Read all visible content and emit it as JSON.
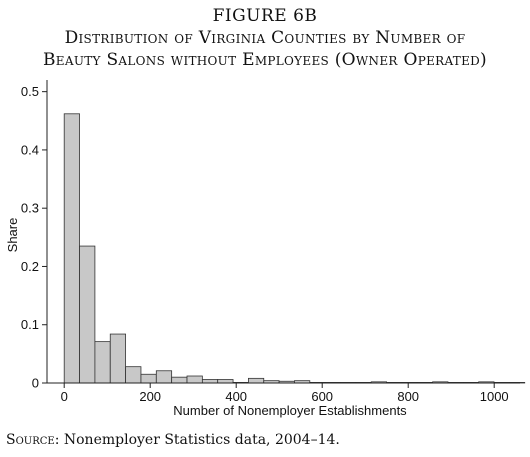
{
  "figure": {
    "label": "FIGURE 6B",
    "title_line1": "Distribution of Virginia Counties by Number of",
    "title_line2": "Beauty Salons without Employees (Owner Operated)"
  },
  "source": {
    "lead": "Source:",
    "text": " Nonemployer Statistics data, 2004–14."
  },
  "chart_data": {
    "type": "bar",
    "xlabel": "Number of Nonemployer Establishments",
    "ylabel": "Share",
    "xlim": [
      -40,
      1060
    ],
    "ylim": [
      0,
      0.52
    ],
    "bin_width": 35.7,
    "bin_start": 0,
    "bar_fill": "#c8c8c8",
    "bar_stroke": "#333333",
    "xticks": [
      0,
      200,
      400,
      600,
      800,
      1000
    ],
    "xtick_labels": [
      "0",
      "200",
      "400",
      "600",
      "800",
      "1000"
    ],
    "yticks": [
      0,
      0.1,
      0.2,
      0.3,
      0.4,
      0.5
    ],
    "ytick_labels": [
      "0",
      "0.1",
      "0.2",
      "0.3",
      "0.4",
      "0.5"
    ],
    "values": [
      0.462,
      0.235,
      0.071,
      0.084,
      0.028,
      0.015,
      0.021,
      0.01,
      0.012,
      0.006,
      0.006,
      0.001,
      0.008,
      0.004,
      0.003,
      0.004,
      0.001,
      0.001,
      0.001,
      0.001,
      0.002,
      0.001,
      0.001,
      0.001,
      0.002,
      0.001,
      0.001,
      0.002,
      0.001,
      0.001
    ]
  }
}
